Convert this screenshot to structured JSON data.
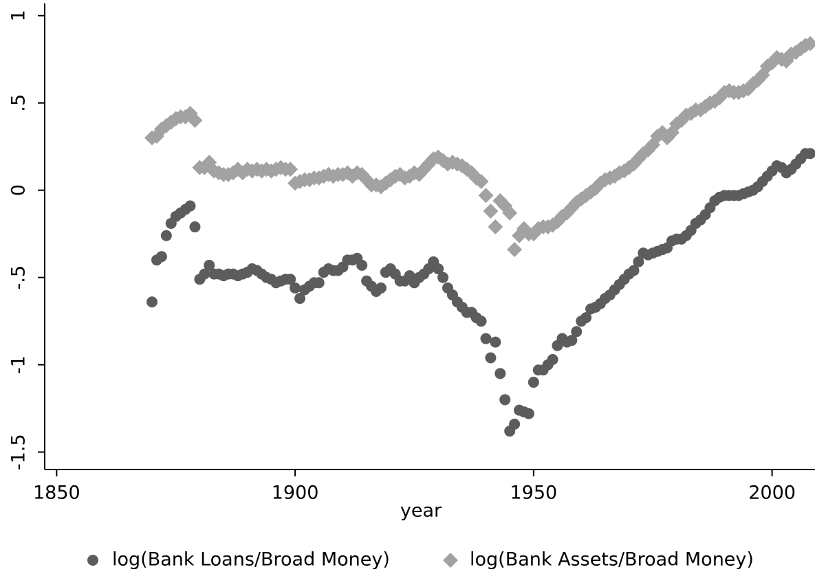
{
  "chart_data": {
    "type": "scatter",
    "x_label": "year",
    "x": [
      1870,
      1871,
      1872,
      1873,
      1874,
      1875,
      1876,
      1877,
      1878,
      1879,
      1880,
      1881,
      1882,
      1883,
      1884,
      1885,
      1886,
      1887,
      1888,
      1889,
      1890,
      1891,
      1892,
      1893,
      1894,
      1895,
      1896,
      1897,
      1898,
      1899,
      1900,
      1901,
      1902,
      1903,
      1904,
      1905,
      1906,
      1907,
      1908,
      1909,
      1910,
      1911,
      1912,
      1913,
      1914,
      1915,
      1916,
      1917,
      1918,
      1919,
      1920,
      1921,
      1922,
      1923,
      1924,
      1925,
      1926,
      1927,
      1928,
      1929,
      1930,
      1931,
      1932,
      1933,
      1934,
      1935,
      1936,
      1937,
      1938,
      1939,
      1940,
      1941,
      1942,
      1943,
      1944,
      1945,
      1946,
      1947,
      1948,
      1949,
      1950,
      1951,
      1952,
      1953,
      1954,
      1955,
      1956,
      1957,
      1958,
      1959,
      1960,
      1961,
      1962,
      1963,
      1964,
      1965,
      1966,
      1967,
      1968,
      1969,
      1970,
      1971,
      1972,
      1973,
      1974,
      1975,
      1976,
      1977,
      1978,
      1979,
      1980,
      1981,
      1982,
      1983,
      1984,
      1985,
      1986,
      1987,
      1988,
      1989,
      1990,
      1991,
      1992,
      1993,
      1994,
      1995,
      1996,
      1997,
      1998,
      1999,
      2000,
      2001,
      2002,
      2003,
      2004,
      2005,
      2006,
      2007,
      2008
    ],
    "series": [
      {
        "name": "log(Bank Loans/Broad Money)",
        "color": "#5c5c5c",
        "marker": "circle",
        "values": [
          -0.64,
          -0.4,
          -0.38,
          -0.26,
          -0.19,
          -0.15,
          -0.13,
          -0.11,
          -0.09,
          -0.21,
          -0.51,
          -0.48,
          -0.43,
          -0.48,
          -0.48,
          -0.49,
          -0.48,
          -0.48,
          -0.49,
          -0.48,
          -0.47,
          -0.45,
          -0.46,
          -0.48,
          -0.5,
          -0.51,
          -0.53,
          -0.52,
          -0.51,
          -0.51,
          -0.56,
          -0.62,
          -0.57,
          -0.55,
          -0.53,
          -0.53,
          -0.47,
          -0.45,
          -0.46,
          -0.46,
          -0.44,
          -0.4,
          -0.4,
          -0.39,
          -0.43,
          -0.52,
          -0.55,
          -0.58,
          -0.56,
          -0.47,
          -0.45,
          -0.48,
          -0.52,
          -0.52,
          -0.49,
          -0.53,
          -0.5,
          -0.48,
          -0.45,
          -0.41,
          -0.45,
          -0.5,
          -0.56,
          -0.6,
          -0.64,
          -0.67,
          -0.7,
          -0.7,
          -0.73,
          -0.75,
          -0.85,
          -0.96,
          -0.87,
          -1.05,
          -1.2,
          -1.38,
          -1.34,
          -1.26,
          -1.27,
          -1.28,
          -1.1,
          -1.03,
          -1.03,
          -1.0,
          -0.97,
          -0.89,
          -0.85,
          -0.87,
          -0.86,
          -0.81,
          -0.75,
          -0.73,
          -0.68,
          -0.67,
          -0.65,
          -0.62,
          -0.6,
          -0.57,
          -0.54,
          -0.51,
          -0.48,
          -0.46,
          -0.41,
          -0.36,
          -0.37,
          -0.36,
          -0.35,
          -0.34,
          -0.33,
          -0.29,
          -0.28,
          -0.28,
          -0.26,
          -0.23,
          -0.19,
          -0.17,
          -0.14,
          -0.1,
          -0.06,
          -0.04,
          -0.03,
          -0.03,
          -0.03,
          -0.03,
          -0.02,
          -0.01,
          0.0,
          0.02,
          0.05,
          0.08,
          0.11,
          0.14,
          0.13,
          0.1,
          0.12,
          0.15,
          0.18,
          0.21,
          0.21
        ]
      },
      {
        "name": "log(Bank Assets/Broad Money)",
        "color": "#a2a2a2",
        "marker": "diamond",
        "values": [
          0.3,
          0.31,
          0.35,
          0.37,
          0.39,
          0.41,
          0.42,
          0.42,
          0.44,
          0.4,
          0.13,
          0.13,
          0.16,
          0.11,
          0.1,
          0.09,
          0.09,
          0.1,
          0.12,
          0.1,
          0.12,
          0.11,
          0.12,
          0.11,
          0.12,
          0.11,
          0.12,
          0.13,
          0.12,
          0.12,
          0.04,
          0.05,
          0.06,
          0.06,
          0.07,
          0.07,
          0.08,
          0.09,
          0.08,
          0.09,
          0.09,
          0.1,
          0.08,
          0.1,
          0.09,
          0.06,
          0.03,
          0.03,
          0.02,
          0.04,
          0.06,
          0.08,
          0.09,
          0.07,
          0.08,
          0.1,
          0.09,
          0.12,
          0.15,
          0.18,
          0.19,
          0.17,
          0.15,
          0.16,
          0.15,
          0.14,
          0.12,
          0.1,
          0.07,
          0.05,
          -0.03,
          -0.12,
          -0.21,
          -0.06,
          -0.09,
          -0.13,
          -0.34,
          -0.26,
          -0.22,
          -0.25,
          -0.25,
          -0.22,
          -0.21,
          -0.21,
          -0.2,
          -0.18,
          -0.15,
          -0.13,
          -0.1,
          -0.07,
          -0.05,
          -0.03,
          -0.01,
          0.01,
          0.04,
          0.06,
          0.07,
          0.08,
          0.1,
          0.11,
          0.13,
          0.15,
          0.18,
          0.21,
          0.23,
          0.26,
          0.31,
          0.33,
          0.3,
          0.33,
          0.38,
          0.4,
          0.43,
          0.44,
          0.46,
          0.46,
          0.48,
          0.5,
          0.51,
          0.53,
          0.56,
          0.57,
          0.56,
          0.56,
          0.57,
          0.58,
          0.61,
          0.63,
          0.66,
          0.71,
          0.73,
          0.76,
          0.75,
          0.74,
          0.78,
          0.79,
          0.81,
          0.83,
          0.84
        ]
      }
    ],
    "xlim": [
      1847.5,
      2009
    ],
    "ylim": [
      -1.6,
      1.07
    ],
    "xticks": [
      1850,
      1900,
      1950,
      2000
    ],
    "yticks": [
      {
        "value": -1.5,
        "label": "-1.5"
      },
      -1,
      {
        "value": -0.5,
        "label": "-.5"
      },
      0,
      {
        "value": 0.5,
        "label": ".5"
      },
      1
    ],
    "legend": "bottom"
  }
}
